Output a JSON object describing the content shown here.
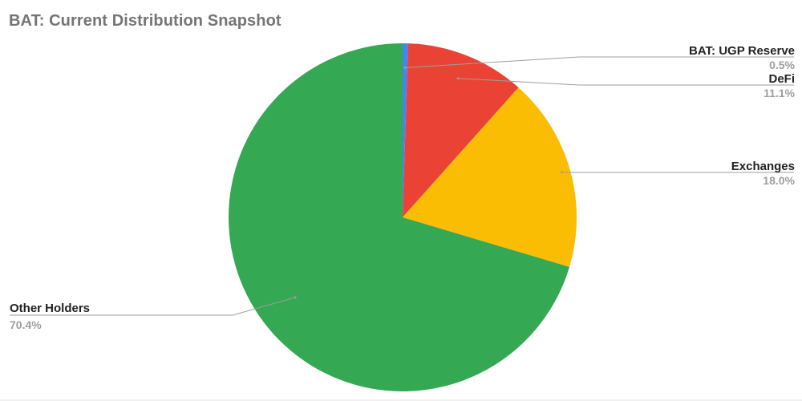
{
  "chart_data": {
    "type": "pie",
    "title": "BAT: Current Distribution Snapshot",
    "slices": [
      {
        "label": "BAT: UGP Reserve",
        "value": 0.5,
        "display": "0.5%",
        "color": "#4285f4"
      },
      {
        "label": "DeFi",
        "value": 11.1,
        "display": "11.1%",
        "color": "#ea4335"
      },
      {
        "label": "Exchanges",
        "value": 18.0,
        "display": "18.0%",
        "color": "#fbbc04"
      },
      {
        "label": "Other Holders",
        "value": 70.4,
        "display": "70.4%",
        "color": "#34a853"
      }
    ],
    "start_angle": "12 o'clock",
    "direction": "clockwise",
    "legend": "none (labels beside slices)"
  }
}
